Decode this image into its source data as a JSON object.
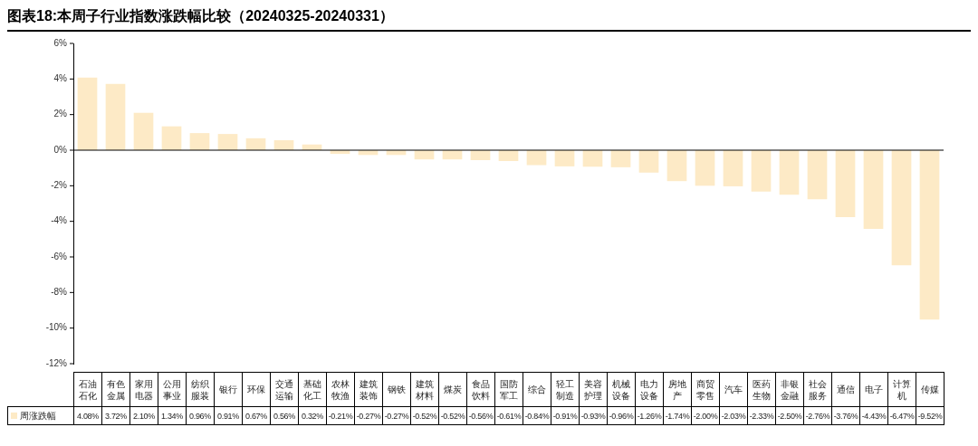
{
  "chart_data": {
    "type": "bar",
    "title": "图表18:本周子行业指数涨跌幅比较（20240325-20240331）",
    "categories": [
      "石油石化",
      "有色金属",
      "家用电器",
      "公用事业",
      "纺织服装",
      "银行",
      "环保",
      "交通运输",
      "基础化工",
      "农林牧渔",
      "建筑装饰",
      "钢铁",
      "建筑材料",
      "煤炭",
      "食品饮料",
      "国防军工",
      "综合",
      "轻工制造",
      "美容护理",
      "机械设备",
      "电力设备",
      "房地产",
      "商贸零售",
      "汽车",
      "医药生物",
      "非银金融",
      "社会服务",
      "通信",
      "电子",
      "计算机",
      "传媒"
    ],
    "series": [
      {
        "name": "周涨跌幅",
        "color": "#fdeac6",
        "values": [
          4.08,
          3.72,
          2.1,
          1.34,
          0.96,
          0.91,
          0.67,
          0.56,
          0.32,
          -0.21,
          -0.27,
          -0.27,
          -0.52,
          -0.52,
          -0.56,
          -0.61,
          -0.84,
          -0.91,
          -0.93,
          -0.96,
          -1.26,
          -1.74,
          -2.0,
          -2.03,
          -2.33,
          -2.5,
          -2.76,
          -3.76,
          -4.43,
          -6.47,
          -9.52
        ],
        "value_labels": [
          "4.08%",
          "3.72%",
          "2.10%",
          "1.34%",
          "0.96%",
          "0.91%",
          "0.67%",
          "0.56%",
          "0.32%",
          "-0.21%",
          "-0.27%",
          "-0.27%",
          "-0.52%",
          "-0.52%",
          "-0.56%",
          "-0.61%",
          "-0.84%",
          "-0.91%",
          "-0.93%",
          "-0.96%",
          "-1.26%",
          "-1.74%",
          "-2.00%",
          "-2.03%",
          "-2.33%",
          "-2.50%",
          "-2.76%",
          "-3.76%",
          "-4.43%",
          "-6.47%",
          "-9.52%"
        ]
      }
    ],
    "ylim": [
      -12,
      6
    ],
    "yticks": [
      {
        "value": -12,
        "label": "-12%"
      },
      {
        "value": -10,
        "label": "-10%"
      },
      {
        "value": -8,
        "label": "-8%"
      },
      {
        "value": -6,
        "label": "-6%"
      },
      {
        "value": -4,
        "label": "-4%"
      },
      {
        "value": -2,
        "label": "-2%"
      },
      {
        "value": 0,
        "label": "0%"
      },
      {
        "value": 2,
        "label": "2%"
      },
      {
        "value": 4,
        "label": "4%"
      },
      {
        "value": 6,
        "label": "6%"
      }
    ],
    "legend": "bottom left"
  }
}
